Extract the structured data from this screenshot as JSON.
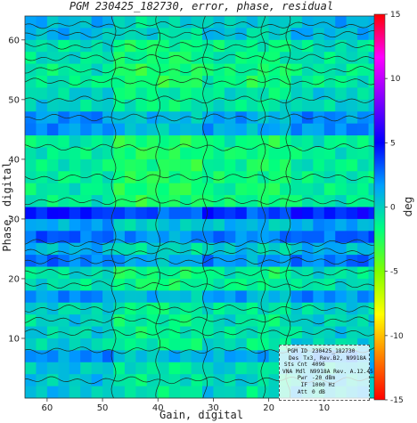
{
  "chart_data": {
    "type": "heatmap",
    "title": "PGM 230425_182730, error, phase, residual",
    "xlabel": "Gain, digital",
    "ylabel": "Phase, digital",
    "xlim": [
      64,
      0
    ],
    "ylim": [
      0,
      64
    ],
    "x_reversed": true,
    "x_ticks": [
      60,
      50,
      40,
      30,
      20,
      10
    ],
    "y_ticks": [
      10,
      20,
      30,
      40,
      50,
      60
    ],
    "colorbar": {
      "label": "deg",
      "range": [
        -15,
        15
      ],
      "ticks": [
        15,
        10,
        5,
        0,
        -5,
        -10,
        -15
      ],
      "colors": [
        "#ff0000",
        "#ff00ff",
        "#8000ff",
        "#0000ff",
        "#00a0ff",
        "#00ff80",
        "#80ff00",
        "#ffff00",
        "#ff8000",
        "#ff0000"
      ]
    },
    "band_pattern_y": [
      {
        "y_from": 0,
        "y_to": 6,
        "value": 0
      },
      {
        "y_from": 6,
        "y_to": 8,
        "value": 1.5
      },
      {
        "y_from": 8,
        "y_to": 16,
        "value": -0.5
      },
      {
        "y_from": 16,
        "y_to": 18,
        "value": 1.5
      },
      {
        "y_from": 18,
        "y_to": 22,
        "value": -1
      },
      {
        "y_from": 22,
        "y_to": 24,
        "value": 2
      },
      {
        "y_from": 24,
        "y_to": 26,
        "value": 0.5
      },
      {
        "y_from": 26,
        "y_to": 28,
        "value": 2.5
      },
      {
        "y_from": 28,
        "y_to": 30,
        "value": 1
      },
      {
        "y_from": 30,
        "y_to": 32,
        "value": 4
      },
      {
        "y_from": 32,
        "y_to": 44,
        "value": -1.5
      },
      {
        "y_from": 44,
        "y_to": 48,
        "value": 1.5
      },
      {
        "y_from": 48,
        "y_to": 52,
        "value": -0.5
      },
      {
        "y_from": 52,
        "y_to": 56,
        "value": -1.5
      },
      {
        "y_from": 56,
        "y_to": 60,
        "value": -1
      },
      {
        "y_from": 60,
        "y_to": 64,
        "value": 0.5
      }
    ],
    "band_pattern_x": [
      {
        "x_from": 0,
        "x_to": 16,
        "value": 0.5
      },
      {
        "x_from": 16,
        "x_to": 24,
        "value": -0.5
      },
      {
        "x_from": 24,
        "x_to": 32,
        "value": 0
      },
      {
        "x_from": 32,
        "x_to": 48,
        "value": -0.8
      },
      {
        "x_from": 48,
        "x_to": 64,
        "value": 0.5
      }
    ],
    "contour_level": 0
  },
  "info_box": {
    "rows": [
      {
        "key": "PGM  ID",
        "value": "230425_182730"
      },
      {
        "key": "Des",
        "value": "Tx3, Rev.B2, N9918A"
      },
      {
        "key": "Sts Cnt",
        "value": "4096"
      },
      {
        "key": "VNA Mdl",
        "value": "N9918A Rev. A.12.45"
      },
      {
        "key": "Pwr",
        "value": "-20 dBm"
      },
      {
        "key": "IF",
        "value": "1000 Hz"
      },
      {
        "key": "Att",
        "value": "0 dB"
      }
    ]
  }
}
